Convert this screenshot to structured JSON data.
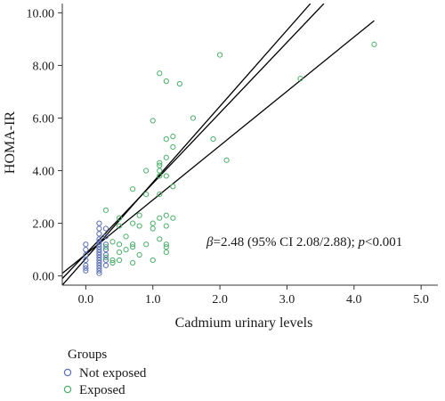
{
  "chart_data": {
    "type": "scatter",
    "xlabel": "Cadmium urinary levels",
    "ylabel": "HOMA-IR",
    "xlim": [
      -0.35,
      5.25
    ],
    "ylim": [
      -0.35,
      10.35
    ],
    "x_ticks": [
      {
        "value": 0,
        "label": "0.0"
      },
      {
        "value": 1,
        "label": "1.0"
      },
      {
        "value": 2,
        "label": "2.0"
      },
      {
        "value": 3,
        "label": "3.0"
      },
      {
        "value": 4,
        "label": "4.0"
      },
      {
        "value": 5,
        "label": "5.0"
      }
    ],
    "y_ticks": [
      {
        "value": 0,
        "label": "0.00"
      },
      {
        "value": 2,
        "label": "2.00"
      },
      {
        "value": 4,
        "label": "4.00"
      },
      {
        "value": 6,
        "label": "6.00"
      },
      {
        "value": 8,
        "label": "8.00"
      },
      {
        "value": 10,
        "label": "10.00"
      }
    ],
    "grid": false,
    "annotation": {
      "beta_symbol": "β",
      "beta_value": "=2.48 (95% CI 2.08/2.88); ",
      "p_symbol": "p",
      "p_value": "<0.001"
    },
    "legend": {
      "title": "Groups",
      "position": "bottom-left",
      "entries": [
        "Not exposed",
        "Exposed"
      ]
    },
    "colors": {
      "not_exposed": "#5b6fb5",
      "exposed": "#4caf6a",
      "line": "#000000",
      "axis": "#333333"
    },
    "lines": [
      {
        "role": "regression",
        "x": [
          -0.35,
          3.55
        ],
        "y": [
          -0.1,
          10.35
        ]
      },
      {
        "role": "upper-ci",
        "x": [
          -0.35,
          3.35
        ],
        "y": [
          -0.35,
          10.35
        ]
      },
      {
        "role": "lower-ci",
        "x": [
          -0.35,
          4.3
        ],
        "y": [
          0.1,
          9.7
        ]
      }
    ],
    "series": [
      {
        "name": "Not exposed",
        "points": [
          [
            0,
            1.2
          ],
          [
            0,
            1.0
          ],
          [
            0,
            0.8
          ],
          [
            0,
            0.6
          ],
          [
            0,
            0.4
          ],
          [
            0,
            0.3
          ],
          [
            0,
            0.2
          ],
          [
            0.2,
            2.0
          ],
          [
            0.2,
            1.8
          ],
          [
            0.2,
            1.6
          ],
          [
            0.2,
            1.4
          ],
          [
            0.2,
            1.3
          ],
          [
            0.2,
            1.2
          ],
          [
            0.2,
            1.1
          ],
          [
            0.2,
            1.0
          ],
          [
            0.2,
            0.9
          ],
          [
            0.2,
            0.8
          ],
          [
            0.2,
            0.7
          ],
          [
            0.2,
            0.6
          ],
          [
            0.2,
            0.5
          ],
          [
            0.2,
            0.4
          ],
          [
            0.2,
            0.3
          ],
          [
            0.2,
            0.2
          ],
          [
            0.2,
            0.1
          ],
          [
            0.3,
            1.8
          ],
          [
            0.3,
            1.5
          ],
          [
            0.3,
            1.2
          ],
          [
            0.3,
            1.0
          ],
          [
            0.3,
            0.8
          ],
          [
            0.3,
            0.6
          ],
          [
            0.3,
            0.4
          ]
        ]
      },
      {
        "name": "Exposed",
        "points": [
          [
            0.3,
            2.5
          ],
          [
            0.3,
            1.1
          ],
          [
            0.3,
            0.7
          ],
          [
            0.4,
            1.3
          ],
          [
            0.4,
            0.6
          ],
          [
            0.4,
            0.5
          ],
          [
            0.5,
            2.2
          ],
          [
            0.5,
            1.9
          ],
          [
            0.5,
            1.2
          ],
          [
            0.5,
            0.9
          ],
          [
            0.5,
            0.6
          ],
          [
            0.6,
            1.5
          ],
          [
            0.6,
            1.0
          ],
          [
            0.7,
            3.3
          ],
          [
            0.7,
            2.0
          ],
          [
            0.7,
            1.2
          ],
          [
            0.7,
            1.1
          ],
          [
            0.7,
            0.5
          ],
          [
            0.8,
            2.3
          ],
          [
            0.8,
            1.9
          ],
          [
            0.8,
            0.8
          ],
          [
            0.9,
            4.0
          ],
          [
            0.9,
            3.1
          ],
          [
            0.9,
            1.2
          ],
          [
            1.0,
            5.9
          ],
          [
            1.0,
            2.0
          ],
          [
            1.0,
            1.8
          ],
          [
            1.0,
            0.6
          ],
          [
            1.1,
            7.7
          ],
          [
            1.1,
            4.3
          ],
          [
            1.1,
            4.2
          ],
          [
            1.1,
            4.0
          ],
          [
            1.1,
            3.8
          ],
          [
            1.1,
            3.1
          ],
          [
            1.1,
            2.2
          ],
          [
            1.1,
            1.4
          ],
          [
            1.2,
            7.4
          ],
          [
            1.2,
            5.2
          ],
          [
            1.2,
            4.5
          ],
          [
            1.2,
            3.8
          ],
          [
            1.2,
            2.3
          ],
          [
            1.2,
            1.9
          ],
          [
            1.2,
            1.2
          ],
          [
            1.2,
            1.1
          ],
          [
            1.2,
            0.9
          ],
          [
            1.3,
            5.3
          ],
          [
            1.3,
            4.9
          ],
          [
            1.3,
            3.4
          ],
          [
            1.3,
            2.2
          ],
          [
            1.4,
            7.3
          ],
          [
            1.6,
            6.0
          ],
          [
            1.9,
            5.2
          ],
          [
            2.0,
            8.4
          ],
          [
            2.1,
            4.4
          ],
          [
            3.2,
            7.5
          ],
          [
            4.3,
            8.8
          ]
        ]
      }
    ]
  }
}
